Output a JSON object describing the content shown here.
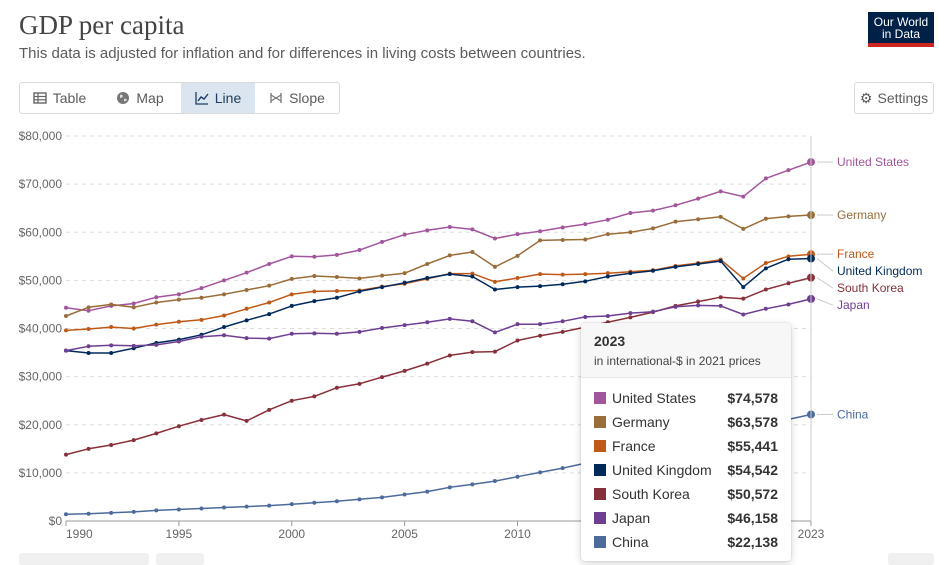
{
  "header": {
    "title": "GDP per capita",
    "subtitle": "This data is adjusted for inflation and for differences in living costs between countries.",
    "logo_line1": "Our World",
    "logo_line2": "in Data"
  },
  "tabs": [
    {
      "label": "Table",
      "icon": "table-icon",
      "active": false
    },
    {
      "label": "Map",
      "icon": "globe-icon",
      "active": false
    },
    {
      "label": "Line",
      "icon": "line-chart-icon",
      "active": true
    },
    {
      "label": "Slope",
      "icon": "slope-icon",
      "active": false
    }
  ],
  "settings_label": "Settings",
  "tooltip": {
    "year": "2023",
    "unit": "in international-$ in 2021 prices",
    "rows": [
      {
        "name": "United States",
        "value": "$74,578",
        "color": "#a2559c"
      },
      {
        "name": "Germany",
        "value": "$63,578",
        "color": "#996d39"
      },
      {
        "name": "France",
        "value": "$55,441",
        "color": "#c05917"
      },
      {
        "name": "United Kingdom",
        "value": "$54,542",
        "color": "#00295b"
      },
      {
        "name": "South Korea",
        "value": "$50,572",
        "color": "#883039"
      },
      {
        "name": "Japan",
        "value": "$46,158",
        "color": "#6d3e91"
      },
      {
        "name": "China",
        "value": "$22,138",
        "color": "#4c6a9c"
      }
    ]
  },
  "chart_data": {
    "type": "line",
    "title": "GDP per capita",
    "x_range": [
      1990,
      2023
    ],
    "ylim": [
      0,
      80000
    ],
    "x_ticks": [
      "1990",
      "1995",
      "2000",
      "2005",
      "2010",
      "2023"
    ],
    "y_ticks": [
      {
        "value": 0,
        "label": "$0"
      },
      {
        "value": 10000,
        "label": "$10,000"
      },
      {
        "value": 20000,
        "label": "$20,000"
      },
      {
        "value": 30000,
        "label": "$30,000"
      },
      {
        "value": 40000,
        "label": "$40,000"
      },
      {
        "value": 50000,
        "label": "$50,000"
      },
      {
        "value": 60000,
        "label": "$60,000"
      },
      {
        "value": 70000,
        "label": "$70,000"
      },
      {
        "value": 80000,
        "label": "$80,000"
      }
    ],
    "grid": "horizontal dashed",
    "legend_placement": "right, at line ends",
    "series": [
      {
        "name": "United States",
        "color": "#a2559c",
        "x": [
          1990,
          1991,
          1992,
          1993,
          1994,
          1995,
          1996,
          1997,
          1998,
          1999,
          2000,
          2001,
          2002,
          2003,
          2004,
          2005,
          2006,
          2007,
          2008,
          2009,
          2010,
          2011,
          2012,
          2013,
          2014,
          2015,
          2016,
          2017,
          2018,
          2019,
          2020,
          2021,
          2022,
          2023
        ],
        "y": [
          44300,
          43700,
          44700,
          45200,
          46500,
          47100,
          48400,
          50000,
          51600,
          53400,
          55000,
          54900,
          55300,
          56300,
          58000,
          59500,
          60400,
          61100,
          60600,
          58700,
          59600,
          60200,
          61000,
          61700,
          62600,
          64000,
          64500,
          65600,
          67000,
          68500,
          67400,
          71200,
          72900,
          74578
        ]
      },
      {
        "name": "Germany",
        "color": "#996d39",
        "x": [
          1990,
          1991,
          1992,
          1993,
          1994,
          1995,
          1996,
          1997,
          1998,
          1999,
          2000,
          2001,
          2002,
          2003,
          2004,
          2005,
          2006,
          2007,
          2008,
          2009,
          2010,
          2011,
          2012,
          2013,
          2014,
          2015,
          2016,
          2017,
          2018,
          2019,
          2020,
          2021,
          2022,
          2023
        ],
        "y": [
          42600,
          44400,
          45000,
          44400,
          45400,
          46000,
          46400,
          47100,
          48000,
          48900,
          50300,
          50900,
          50700,
          50400,
          51000,
          51500,
          53400,
          55200,
          55900,
          52800,
          55100,
          58300,
          58400,
          58500,
          59600,
          60000,
          60800,
          62200,
          62700,
          63200,
          60700,
          62800,
          63300,
          63578
        ]
      },
      {
        "name": "France",
        "color": "#c05917",
        "x": [
          1990,
          1991,
          1992,
          1993,
          1994,
          1995,
          1996,
          1997,
          1998,
          1999,
          2000,
          2001,
          2002,
          2003,
          2004,
          2005,
          2006,
          2007,
          2008,
          2009,
          2010,
          2011,
          2012,
          2013,
          2014,
          2015,
          2016,
          2017,
          2018,
          2019,
          2020,
          2021,
          2022,
          2023
        ],
        "y": [
          39600,
          39900,
          40300,
          40000,
          40800,
          41400,
          41800,
          42700,
          44100,
          45400,
          47100,
          47700,
          47800,
          47900,
          48700,
          49300,
          50300,
          51400,
          51400,
          49700,
          50500,
          51300,
          51200,
          51300,
          51500,
          51800,
          52100,
          53000,
          53600,
          54300,
          50400,
          53600,
          55000,
          55441
        ]
      },
      {
        "name": "United Kingdom",
        "color": "#00295b",
        "x": [
          1990,
          1991,
          1992,
          1993,
          1994,
          1995,
          1996,
          1997,
          1998,
          1999,
          2000,
          2001,
          2002,
          2003,
          2004,
          2005,
          2006,
          2007,
          2008,
          2009,
          2010,
          2011,
          2012,
          2013,
          2014,
          2015,
          2016,
          2017,
          2018,
          2019,
          2020,
          2021,
          2022,
          2023
        ],
        "y": [
          35400,
          34900,
          34900,
          35900,
          37000,
          37700,
          38700,
          40300,
          41700,
          43000,
          44700,
          45700,
          46400,
          47700,
          48600,
          49500,
          50500,
          51300,
          50800,
          48100,
          48600,
          48800,
          49200,
          49800,
          50800,
          51500,
          52000,
          52800,
          53400,
          54000,
          48600,
          52500,
          54400,
          54542
        ]
      },
      {
        "name": "South Korea",
        "color": "#883039",
        "x": [
          1990,
          1991,
          1992,
          1993,
          1994,
          1995,
          1996,
          1997,
          1998,
          1999,
          2000,
          2001,
          2002,
          2003,
          2004,
          2005,
          2006,
          2007,
          2008,
          2009,
          2010,
          2011,
          2012,
          2013,
          2014,
          2015,
          2016,
          2017,
          2018,
          2019,
          2020,
          2021,
          2022,
          2023
        ],
        "y": [
          13800,
          15000,
          15800,
          16800,
          18200,
          19700,
          21000,
          22100,
          20800,
          23100,
          25000,
          25900,
          27700,
          28500,
          29900,
          31200,
          32700,
          34400,
          35100,
          35200,
          37500,
          38500,
          39300,
          40300,
          41300,
          42300,
          43400,
          44700,
          45600,
          46500,
          46200,
          48100,
          49400,
          50572
        ]
      },
      {
        "name": "Japan",
        "color": "#6d3e91",
        "x": [
          1990,
          1991,
          1992,
          1993,
          1994,
          1995,
          1996,
          1997,
          1998,
          1999,
          2000,
          2001,
          2002,
          2003,
          2004,
          2005,
          2006,
          2007,
          2008,
          2009,
          2010,
          2011,
          2012,
          2013,
          2014,
          2015,
          2016,
          2017,
          2018,
          2019,
          2020,
          2021,
          2022,
          2023
        ],
        "y": [
          35400,
          36300,
          36500,
          36400,
          36600,
          37300,
          38300,
          38600,
          38000,
          37900,
          38900,
          39000,
          38900,
          39300,
          40100,
          40700,
          41300,
          42000,
          41500,
          39200,
          40900,
          40900,
          41500,
          42400,
          42600,
          43200,
          43500,
          44500,
          44800,
          44700,
          42900,
          44100,
          45000,
          46158
        ]
      },
      {
        "name": "China",
        "color": "#4c6a9c",
        "x": [
          1990,
          1991,
          1992,
          1993,
          1994,
          1995,
          1996,
          1997,
          1998,
          1999,
          2000,
          2001,
          2002,
          2003,
          2004,
          2005,
          2006,
          2007,
          2008,
          2009,
          2010,
          2011,
          2012,
          2023
        ],
        "y": [
          1400,
          1500,
          1700,
          1900,
          2200,
          2400,
          2600,
          2800,
          3000,
          3200,
          3500,
          3800,
          4100,
          4500,
          4900,
          5500,
          6100,
          7000,
          7600,
          8300,
          9200,
          10100,
          11000,
          22138
        ]
      }
    ]
  }
}
